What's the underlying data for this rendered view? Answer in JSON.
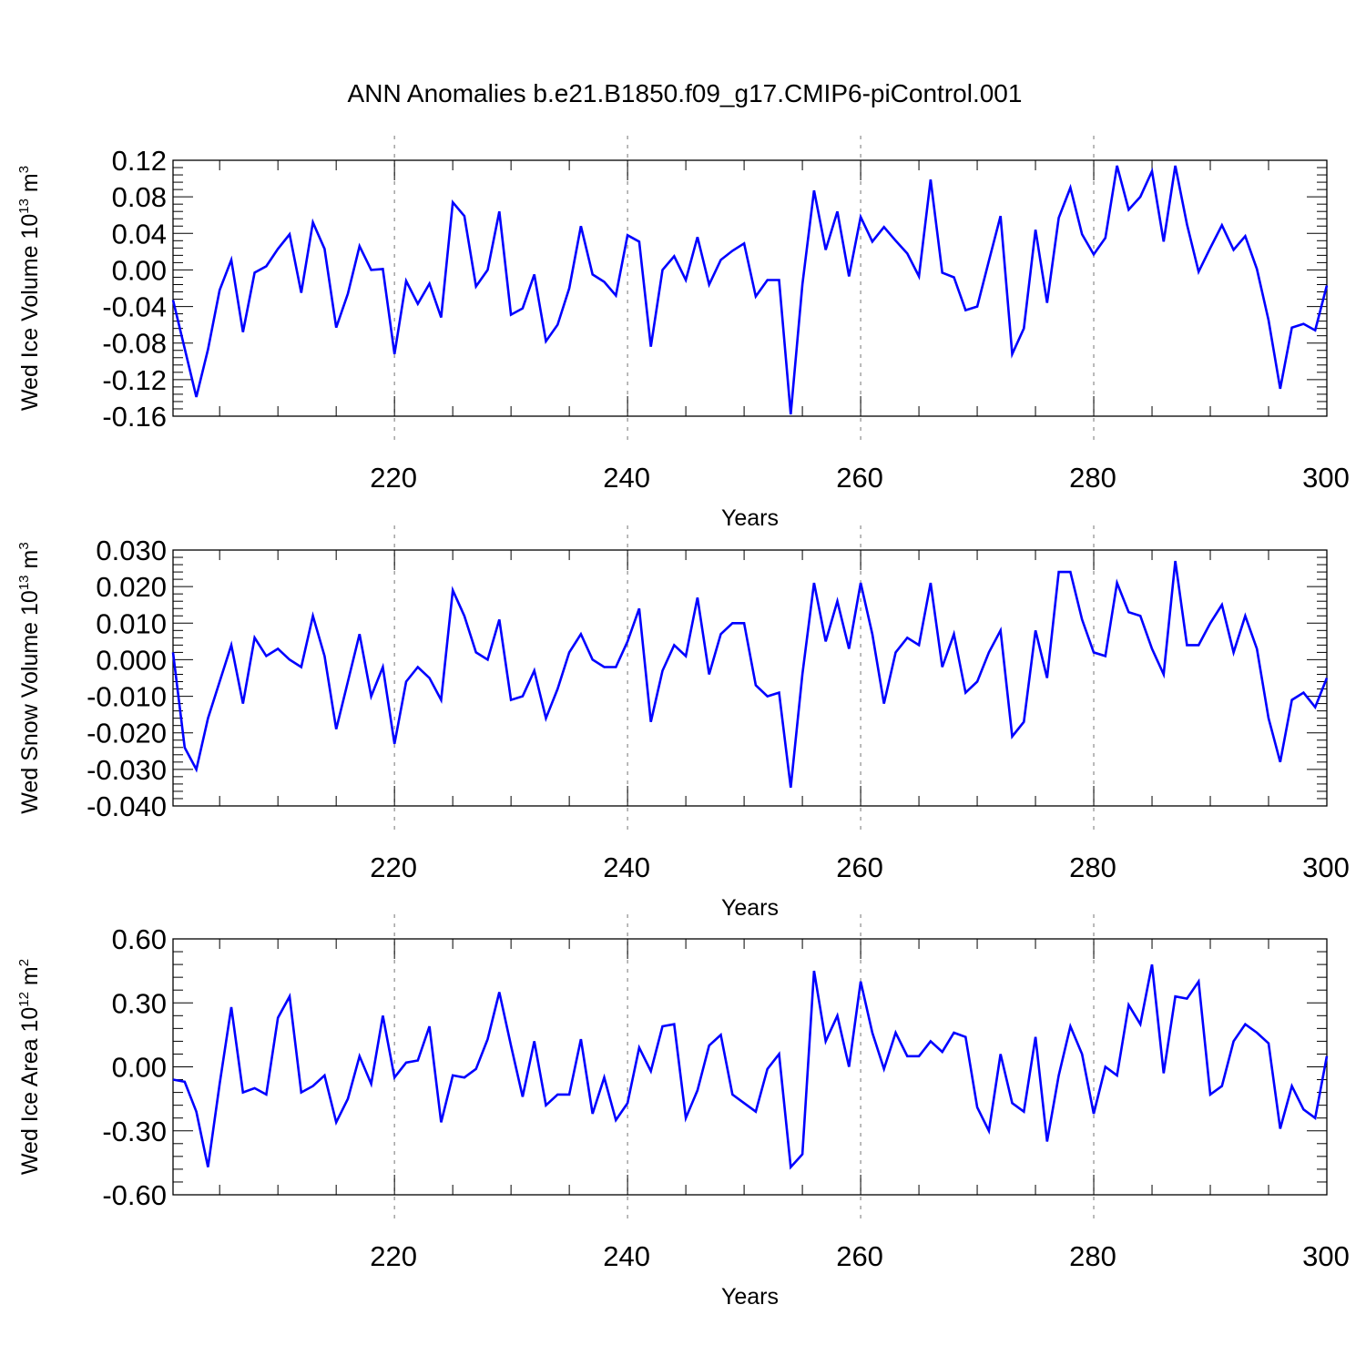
{
  "figure": {
    "title": "ANN Anomalies b.e21.B1850.f09_g17.CMIP6-piControl.001",
    "line_color": "#0000ff"
  },
  "chart_data": [
    {
      "type": "line",
      "title": "",
      "xlabel": "Years",
      "ylabel": "Wed Ice Volume 10",
      "ylabel_sup": "13",
      "ylabel_unit": "m",
      "ylabel_unit_sup": "3",
      "xlim": [
        201,
        300
      ],
      "ylim": [
        -0.16,
        0.12
      ],
      "xticks": [
        220,
        240,
        260,
        280,
        300
      ],
      "yticks": [
        -0.16,
        -0.12,
        -0.08,
        -0.04,
        0.0,
        0.04,
        0.08,
        0.12
      ],
      "ytick_labels": [
        "-0.16",
        "-0.12",
        "-0.08",
        "-0.04",
        "0.00",
        "0.04",
        "0.08",
        "0.12"
      ],
      "grid": "vertical dashed at major x ticks",
      "x_start": 201,
      "values": [
        -0.033,
        -0.086,
        -0.139,
        -0.087,
        -0.022,
        0.011,
        -0.068,
        -0.003,
        0.004,
        0.023,
        0.039,
        -0.025,
        0.052,
        0.023,
        -0.063,
        -0.026,
        0.026,
        0.0,
        0.001,
        -0.092,
        -0.012,
        -0.037,
        -0.015,
        -0.052,
        0.074,
        0.059,
        -0.018,
        0.0,
        0.064,
        -0.049,
        -0.042,
        -0.005,
        -0.078,
        -0.06,
        -0.02,
        0.048,
        -0.005,
        -0.013,
        -0.028,
        0.038,
        0.031,
        -0.084,
        0.0,
        0.015,
        -0.011,
        0.036,
        -0.016,
        0.011,
        0.021,
        0.029,
        -0.029,
        -0.011,
        -0.011,
        -0.158,
        -0.016,
        0.087,
        0.022,
        0.064,
        -0.007,
        0.058,
        0.031,
        0.047,
        0.032,
        0.018,
        -0.007,
        0.099,
        -0.003,
        -0.008,
        -0.044,
        -0.04,
        0.01,
        0.059,
        -0.092,
        -0.064,
        0.044,
        -0.036,
        0.057,
        0.09,
        0.039,
        0.017,
        0.035,
        0.114,
        0.066,
        0.08,
        0.108,
        0.031,
        0.114,
        0.05,
        -0.002,
        0.024,
        0.049,
        0.022,
        0.037,
        0.001,
        -0.055,
        -0.13,
        -0.063,
        -0.059,
        -0.066,
        -0.017
      ]
    },
    {
      "type": "line",
      "title": "",
      "xlabel": "Years",
      "ylabel": "Wed Snow Volume 10",
      "ylabel_sup": "13",
      "ylabel_unit": "m",
      "ylabel_unit_sup": "3",
      "xlim": [
        201,
        300
      ],
      "ylim": [
        -0.04,
        0.03
      ],
      "xticks": [
        220,
        240,
        260,
        280,
        300
      ],
      "yticks": [
        -0.04,
        -0.03,
        -0.02,
        -0.01,
        0.0,
        0.01,
        0.02,
        0.03
      ],
      "ytick_labels": [
        "-0.040",
        "-0.030",
        "-0.020",
        "-0.010",
        "0.000",
        "0.010",
        "0.020",
        "0.030"
      ],
      "grid": "vertical dashed at major x ticks",
      "x_start": 201,
      "values": [
        0.002,
        -0.024,
        -0.03,
        -0.016,
        -0.006,
        0.004,
        -0.012,
        0.006,
        0.001,
        0.003,
        0.0,
        -0.002,
        0.012,
        0.001,
        -0.019,
        -0.006,
        0.007,
        -0.01,
        -0.002,
        -0.023,
        -0.006,
        -0.002,
        -0.005,
        -0.011,
        0.019,
        0.012,
        0.002,
        0.0,
        0.011,
        -0.011,
        -0.01,
        -0.003,
        -0.016,
        -0.008,
        0.002,
        0.007,
        0.0,
        -0.002,
        -0.002,
        0.005,
        0.014,
        -0.017,
        -0.003,
        0.004,
        0.001,
        0.017,
        -0.004,
        0.007,
        0.01,
        0.01,
        -0.007,
        -0.01,
        -0.009,
        -0.035,
        -0.004,
        0.021,
        0.005,
        0.016,
        0.003,
        0.021,
        0.007,
        -0.012,
        0.002,
        0.006,
        0.004,
        0.021,
        -0.002,
        0.007,
        -0.009,
        -0.006,
        0.002,
        0.008,
        -0.021,
        -0.017,
        0.008,
        -0.005,
        0.024,
        0.024,
        0.011,
        0.002,
        0.001,
        0.021,
        0.013,
        0.012,
        0.003,
        -0.004,
        0.027,
        0.004,
        0.004,
        0.01,
        0.015,
        0.002,
        0.012,
        0.003,
        -0.016,
        -0.028,
        -0.011,
        -0.009,
        -0.013,
        -0.005
      ]
    },
    {
      "type": "line",
      "title": "",
      "xlabel": "Years",
      "ylabel": "Wed Ice Area 10",
      "ylabel_sup": "12",
      "ylabel_unit": "m",
      "ylabel_unit_sup": "2",
      "xlim": [
        201,
        300
      ],
      "ylim": [
        -0.6,
        0.6
      ],
      "xticks": [
        220,
        240,
        260,
        280,
        300
      ],
      "yticks": [
        -0.6,
        -0.3,
        0.0,
        0.3,
        0.6
      ],
      "ytick_labels": [
        "-0.60",
        "-0.30",
        "0.00",
        "0.30",
        "0.60"
      ],
      "grid": "vertical dashed at major x ticks",
      "x_start": 201,
      "values": [
        -0.06,
        -0.07,
        -0.21,
        -0.47,
        -0.08,
        0.28,
        -0.12,
        -0.1,
        -0.13,
        0.23,
        0.33,
        -0.12,
        -0.09,
        -0.04,
        -0.26,
        -0.15,
        0.05,
        -0.08,
        0.24,
        -0.05,
        0.02,
        0.03,
        0.19,
        -0.26,
        -0.04,
        -0.05,
        -0.01,
        0.13,
        0.35,
        0.1,
        -0.14,
        0.12,
        -0.18,
        -0.13,
        -0.13,
        0.13,
        -0.22,
        -0.05,
        -0.25,
        -0.17,
        0.09,
        -0.02,
        0.19,
        0.2,
        -0.24,
        -0.11,
        0.1,
        0.15,
        -0.13,
        -0.17,
        -0.21,
        -0.01,
        0.06,
        -0.47,
        -0.41,
        0.45,
        0.12,
        0.24,
        0.0,
        0.4,
        0.16,
        -0.01,
        0.16,
        0.05,
        0.05,
        0.12,
        0.07,
        0.16,
        0.14,
        -0.19,
        -0.3,
        0.06,
        -0.17,
        -0.21,
        0.14,
        -0.35,
        -0.04,
        0.19,
        0.06,
        -0.22,
        0.0,
        -0.04,
        0.29,
        0.2,
        0.48,
        -0.03,
        0.33,
        0.32,
        0.4,
        -0.13,
        -0.09,
        0.12,
        0.2,
        0.16,
        0.11,
        -0.29,
        -0.09,
        -0.2,
        -0.24,
        0.05
      ]
    }
  ]
}
